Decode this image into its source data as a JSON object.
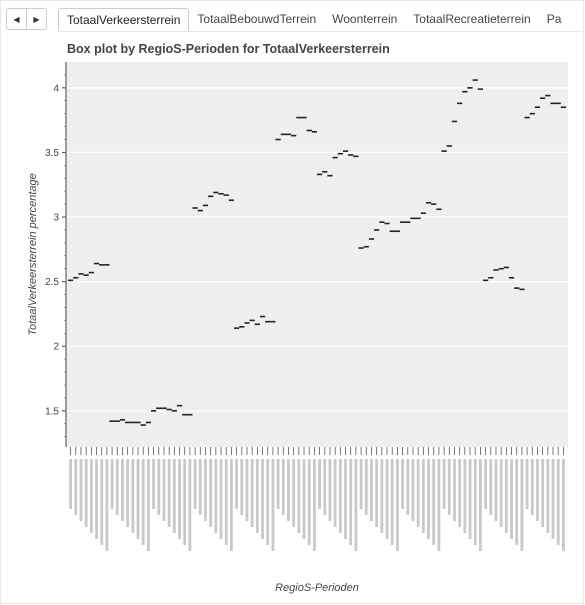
{
  "tabs": [
    {
      "label": "TotaalVerkeersterrein",
      "active": true
    },
    {
      "label": "TotaalBebouwdTerrein",
      "active": false
    },
    {
      "label": "Woonterrein",
      "active": false
    },
    {
      "label": "TotaalRecreatieterrein",
      "active": false
    },
    {
      "label": "Pa",
      "active": false
    }
  ],
  "nav": {
    "prev_icon": "chevron-left-icon",
    "next_icon": "chevron-right-icon"
  },
  "chart_data": {
    "type": "box",
    "title": "Box plot by RegioS-Perioden for TotaalVerkeersterrein",
    "xlabel": "RegioS-Perioden",
    "ylabel": "TotaalVerkeersterrein percentage",
    "ylim": [
      1.22,
      4.2
    ],
    "yticks": [
      1.5,
      2,
      2.5,
      3,
      3.5,
      4
    ],
    "grid": true,
    "background": "#efefef",
    "box_color": "#222222",
    "groups": [
      {
        "values": [
          2.51,
          2.53,
          2.56,
          2.55,
          2.57,
          2.64,
          2.63,
          2.63
        ]
      },
      {
        "values": [
          1.42,
          1.42,
          1.43,
          1.41,
          1.41,
          1.41,
          1.39,
          1.41
        ]
      },
      {
        "values": [
          1.5,
          1.52,
          1.52,
          1.51,
          1.5,
          1.54,
          1.47,
          1.47
        ]
      },
      {
        "values": [
          3.07,
          3.05,
          3.09,
          3.16,
          3.19,
          3.18,
          3.17,
          3.13
        ]
      },
      {
        "values": [
          2.14,
          2.15,
          2.18,
          2.2,
          2.17,
          2.23,
          2.19,
          2.19
        ]
      },
      {
        "values": [
          3.6,
          3.64,
          3.64,
          3.63,
          3.77,
          3.77,
          3.67,
          3.66
        ]
      },
      {
        "values": [
          3.33,
          3.35,
          3.32,
          3.46,
          3.49,
          3.51,
          3.48,
          3.47
        ]
      },
      {
        "values": [
          2.76,
          2.77,
          2.83,
          2.9,
          2.96,
          2.95,
          2.89,
          2.89,
          2.96,
          2.96,
          2.99,
          2.99,
          3.03,
          3.11,
          3.1,
          3.06
        ]
      },
      {
        "values": [
          3.51,
          3.55,
          3.74,
          3.88,
          3.97,
          4.0,
          4.06,
          3.99
        ]
      },
      {
        "values": [
          2.51,
          2.53,
          2.59,
          2.6,
          2.61,
          2.53,
          2.45,
          2.44
        ]
      },
      {
        "values": [
          3.77,
          3.8,
          3.85,
          3.92,
          3.94,
          3.88,
          3.88,
          3.85
        ]
      }
    ]
  }
}
